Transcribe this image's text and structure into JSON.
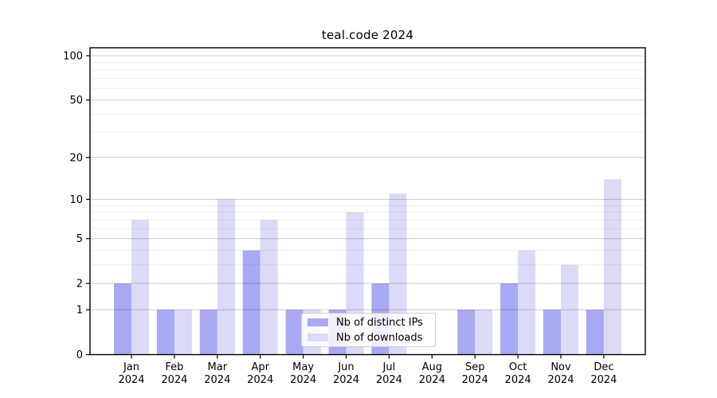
{
  "chart_data": {
    "type": "bar",
    "title": "teal.code 2024",
    "categories": [
      "Jan",
      "Feb",
      "Mar",
      "Apr",
      "May",
      "Jun",
      "Jul",
      "Aug",
      "Sep",
      "Oct",
      "Nov",
      "Dec"
    ],
    "year_label": "2024",
    "series": [
      {
        "name": "Nb of distinct IPs",
        "color": "#a9a9f3",
        "values": [
          2,
          1,
          1,
          4,
          1,
          1,
          2,
          0,
          1,
          2,
          1,
          1
        ]
      },
      {
        "name": "Nb of downloads",
        "color": "#dbdbf8",
        "values": [
          7,
          1,
          10,
          7,
          1,
          8,
          11,
          0,
          1,
          4,
          3,
          14
        ]
      }
    ],
    "xlabel": "",
    "ylabel": "",
    "y_scale": "log10(1+x)",
    "y_ticks": [
      0,
      1,
      2,
      5,
      10,
      20,
      50,
      100
    ],
    "y_minor_gridlines": [
      3,
      4,
      6,
      7,
      8,
      9,
      30,
      40,
      60,
      70,
      80,
      90
    ],
    "ylim": [
      0,
      113
    ],
    "grid": "on",
    "legend_position": "bottom-center"
  },
  "colors": {
    "background": "#ffffff",
    "axis": "#000000",
    "grid_major": "#cccccc",
    "grid_minor": "#ededed",
    "text": "#000000"
  }
}
